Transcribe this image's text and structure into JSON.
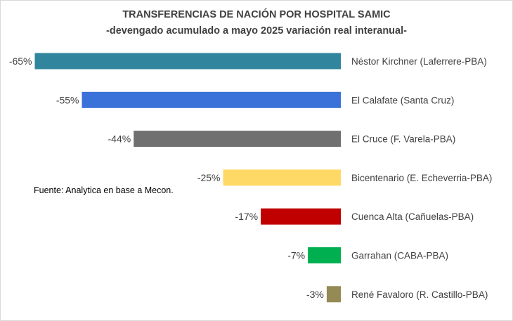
{
  "chart_data": {
    "type": "bar",
    "orientation": "horizontal",
    "title": "TRANSFERENCIAS DE NACIÓN POR HOSPITAL SAMIC",
    "subtitle": "-devengado acumulado a mayo 2025 variación real interanual-",
    "source_note": "Fuente: Analytica en base a Mecon.",
    "categories": [
      "Néstor Kirchner (Laferrere-PBA)",
      "El Calafate (Santa Cruz)",
      "El Cruce (F. Varela-PBA)",
      "Bicentenario (E. Echeverria-PBA)",
      "Cuenca Alta (Cañuelas-PBA)",
      "Garrahan (CABA-PBA)",
      "René Favaloro (R. Castillo-PBA)"
    ],
    "values": [
      -65,
      -55,
      -44,
      -25,
      -17,
      -7,
      -3
    ],
    "value_labels": [
      "-65%",
      "-55%",
      "-44%",
      "-25%",
      "-17%",
      "-7%",
      "-3%"
    ],
    "colors": [
      "#31859C",
      "#3A72DA",
      "#707070",
      "#FFD966",
      "#C00000",
      "#00B050",
      "#948A54"
    ],
    "value_unit": "%",
    "grid": false,
    "legend": "none"
  }
}
